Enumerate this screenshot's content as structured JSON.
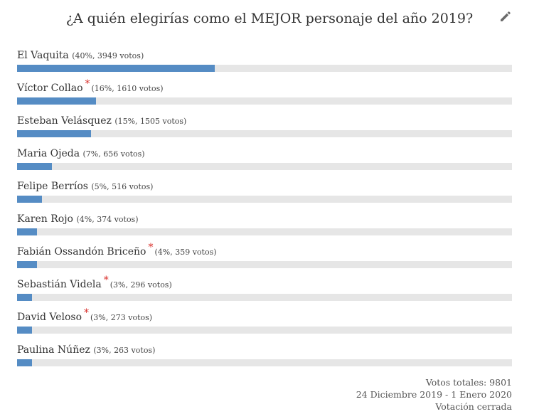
{
  "poll": {
    "title": "¿A quién elegirías como el MEJOR personaje del año 2019?",
    "edit_icon": "pencil-icon",
    "colors": {
      "bar_fill": "#558cc4",
      "bar_track": "#e6e6e6",
      "star": "#d9302c"
    },
    "options": [
      {
        "name": "El Vaquita",
        "starred": false,
        "stats": "(40%, 3949 votos)",
        "percent": 40
      },
      {
        "name": "Víctor Collao",
        "starred": true,
        "stats": "(16%, 1610 votos)",
        "percent": 16
      },
      {
        "name": "Esteban Velásquez",
        "starred": false,
        "stats": "(15%, 1505 votos)",
        "percent": 15
      },
      {
        "name": "Maria Ojeda",
        "starred": false,
        "stats": "(7%, 656 votos)",
        "percent": 7
      },
      {
        "name": "Felipe Berríos",
        "starred": false,
        "stats": "(5%, 516 votos)",
        "percent": 5
      },
      {
        "name": "Karen Rojo",
        "starred": false,
        "stats": "(4%, 374 votos)",
        "percent": 4
      },
      {
        "name": "Fabián Ossandón Briceño",
        "starred": true,
        "stats": "(4%, 359 votos)",
        "percent": 4
      },
      {
        "name": "Sebastián Videla",
        "starred": true,
        "stats": "(3%, 296 votos)",
        "percent": 3
      },
      {
        "name": "David Veloso",
        "starred": true,
        "stats": "(3%, 273 votos)",
        "percent": 3
      },
      {
        "name": "Paulina Núñez",
        "starred": false,
        "stats": "(3%, 263 votos)",
        "percent": 3
      }
    ],
    "star_symbol": "*",
    "footer": {
      "total_votes": "Votos totales: 9801",
      "date_range": "24 Diciembre 2019 - 1 Enero 2020",
      "status": "Votación cerrada"
    }
  }
}
